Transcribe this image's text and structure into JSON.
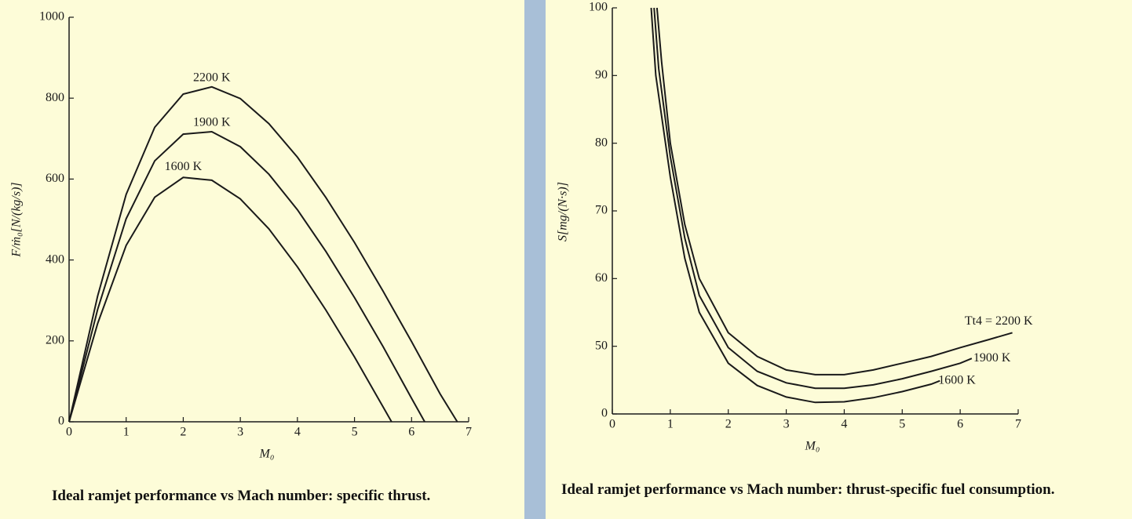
{
  "chart_data": [
    {
      "type": "line",
      "xlabel": "M₀",
      "ylabel": "F/ṁ₀[N/(kg/s)]",
      "caption": "Ideal ramjet performance vs Mach number: specific thrust.",
      "xlim": [
        0,
        7
      ],
      "ylim": [
        0,
        1000
      ],
      "xticks": [
        0,
        1,
        2,
        3,
        4,
        5,
        6,
        7
      ],
      "yticks": [
        0,
        200,
        400,
        600,
        800,
        1000
      ],
      "series": [
        {
          "name": "2200 K",
          "color": "#1a1a1a",
          "x": [
            0,
            0.5,
            1,
            1.5,
            2,
            2.5,
            3,
            3.5,
            4,
            4.5,
            5,
            5.5,
            6,
            6.5,
            6.8
          ],
          "values": [
            0,
            311,
            562,
            728,
            810,
            828,
            799,
            737,
            654,
            554,
            443,
            323,
            198,
            69,
            0
          ]
        },
        {
          "name": "1900 K",
          "color": "#1a1a1a",
          "x": [
            0,
            0.5,
            1,
            1.5,
            2,
            2.5,
            3,
            3.5,
            4,
            4.5,
            5,
            5.5,
            6,
            6.23
          ],
          "values": [
            0,
            278,
            502,
            645,
            711,
            717,
            680,
            612,
            524,
            421,
            307,
            186,
            58,
            0
          ]
        },
        {
          "name": "1600 K",
          "color": "#1a1a1a",
          "x": [
            0,
            0.5,
            1,
            1.5,
            2,
            2.5,
            3,
            3.5,
            4,
            4.5,
            5,
            5.5,
            5.65
          ],
          "values": [
            0,
            243,
            436,
            555,
            604,
            597,
            551,
            477,
            383,
            276,
            160,
            37,
            0
          ]
        }
      ]
    },
    {
      "type": "line",
      "xlabel": "M₀",
      "ylabel": "S[mg/(N·s)]",
      "caption": "Ideal ramjet performance vs Mach number: thrust-specific fuel consumption.",
      "xlim": [
        0,
        7
      ],
      "ylim": [
        0,
        100
      ],
      "y_break": [
        0,
        40
      ],
      "xticks": [
        0,
        1,
        2,
        3,
        4,
        5,
        6,
        7
      ],
      "yticks": [
        0,
        50,
        60,
        70,
        80,
        90,
        100
      ],
      "series": [
        {
          "name": "Tt4 = 2200 K",
          "color": "#1a1a1a",
          "x": [
            0.77,
            0.85,
            1,
            1.25,
            1.5,
            2,
            2.5,
            3,
            3.5,
            4,
            4.5,
            5,
            5.5,
            6,
            6.5,
            6.9
          ],
          "values": [
            100,
            92,
            80,
            68,
            60,
            52,
            48.5,
            46.5,
            45.8,
            45.8,
            46.5,
            47.5,
            48.5,
            49.8,
            51,
            52
          ]
        },
        {
          "name": "1900 K",
          "color": "#1a1a1a",
          "x": [
            0.72,
            0.8,
            1,
            1.25,
            1.5,
            2,
            2.5,
            3,
            3.5,
            4,
            4.5,
            5,
            5.5,
            6,
            6.2
          ],
          "values": [
            100,
            91,
            78,
            66,
            57.5,
            49.8,
            46.3,
            44.6,
            43.8,
            43.8,
            44.3,
            45.2,
            46.3,
            47.5,
            48.2
          ]
        },
        {
          "name": "1600 K",
          "color": "#1a1a1a",
          "x": [
            0.67,
            0.75,
            1,
            1.25,
            1.5,
            2,
            2.5,
            3,
            3.5,
            4,
            4.5,
            5,
            5.5,
            5.65
          ],
          "values": [
            100,
            90,
            75,
            63,
            55,
            47.5,
            44.2,
            42.5,
            41.7,
            41.8,
            42.4,
            43.3,
            44.4,
            44.9
          ]
        }
      ]
    }
  ]
}
